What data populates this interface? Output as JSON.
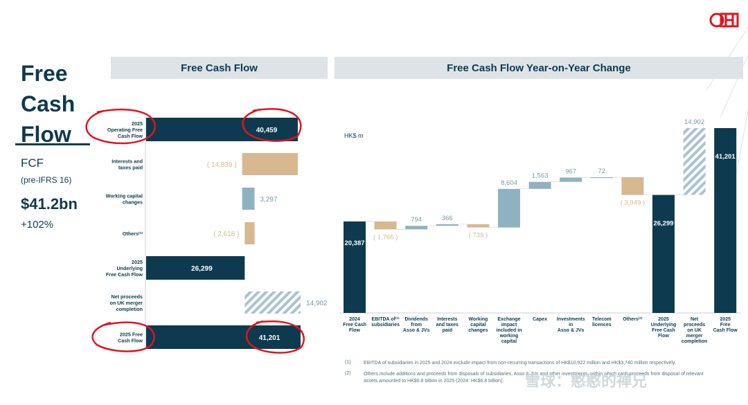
{
  "page": {
    "title": "Free Cash Flow",
    "fcf_label": "FCF",
    "fcf_sub": "(pre-IFRS 16)",
    "fcf_value": "$41.2bn",
    "fcf_change": "+102%"
  },
  "colors": {
    "navy": "#0d3a4f",
    "tan": "#d7b88f",
    "blue_grey": "#8fb2c1",
    "hatch": "#a9c3ce",
    "annotation_red": "#e0141e"
  },
  "footnotes": [
    {
      "num": "(1)",
      "text": "EBITDA of subsidiaries in 2025 and 2024 exclude impact from non-recurring transactions of HK$10,922 million and HK$3,740 million respectively."
    },
    {
      "num": "(2)",
      "text": "Others include additions and proceeds from disposals of subsidiaries, Asso & JVs and other investments, within which cash proceeds from disposal of relevant assets amounted to HK$0.8 billion in 2025 (2024: HK$6.8 billion)."
    }
  ],
  "watermark": "雪球：憨憨的禅兄",
  "chart_data": [
    {
      "type": "bar",
      "orientation": "horizontal",
      "title": "Free Cash Flow",
      "categories": [
        "2025 Operating Free Cash Flow",
        "Interests and taxes paid",
        "Working capital changes",
        "Others",
        "2025 Underlying Free Cash Flow",
        "Net proceeds on UK merger completion",
        "2025 Free Cash Flow"
      ],
      "category_lines": [
        [
          "2025",
          "Operating Free",
          "Cash Flow"
        ],
        [
          "Interests and",
          "taxes paid"
        ],
        [
          "Working capital",
          "changes"
        ],
        [
          "Others⁽²⁾"
        ],
        [
          "2025",
          "Underlying",
          "Free Cash Flow"
        ],
        [
          "Net proceeds",
          "on UK merger",
          "completion"
        ],
        [
          "2025 Free",
          "Cash Flow"
        ]
      ],
      "values": [
        40459,
        -14839,
        3297,
        -2618,
        26299,
        14902,
        41201
      ],
      "labels": [
        "40,459",
        "( 14,839 )",
        "3,297",
        "( 2,618 )",
        "26,299",
        "14,902",
        "41,201"
      ],
      "styles": [
        "total",
        "negative",
        "positive",
        "negative",
        "total",
        "hatched",
        "total"
      ]
    },
    {
      "type": "bar",
      "subtype": "waterfall",
      "title": "Free Cash Flow Year-on-Year Change",
      "ylabel": "HK$ m",
      "categories": [
        "2024 Free Cash Flow",
        "EBITDA of subsidiaries",
        "Dividends from Asso & JVs",
        "Interests and taxes paid",
        "Working capital changes",
        "Exchange impact included in working capital",
        "Capex",
        "Investments in Asso & JVs",
        "Telecom licences",
        "Others",
        "2025 Underlying Free Cash Flow",
        "Net proceeds on UK merger completion",
        "2025 Free Cash Flow"
      ],
      "category_lines": [
        [
          "2024",
          "Free Cash",
          "Flow"
        ],
        [
          "EBITDA of⁽¹⁾",
          "subsidiaries"
        ],
        [
          "Dividends",
          "from",
          "Asso & JVs"
        ],
        [
          "Interests",
          "and taxes",
          "paid"
        ],
        [
          "Working",
          "capital",
          "changes"
        ],
        [
          "Exchange",
          "impact",
          "included in",
          "working",
          "capital"
        ],
        [
          "Capex"
        ],
        [
          "Investments",
          "in",
          "Asso & JVs"
        ],
        [
          "Telecom",
          "licences"
        ],
        [
          "Others⁽²⁾"
        ],
        [
          "2025",
          "Underlying",
          "Free Cash",
          "Flow"
        ],
        [
          "Net",
          "proceeds",
          "on UK",
          "merger",
          "completion"
        ],
        [
          "2025",
          "Free",
          "Cash Flow"
        ]
      ],
      "values": [
        20387,
        -1766,
        794,
        366,
        -739,
        8604,
        1563,
        967,
        72,
        -3949,
        26299,
        14902,
        41201
      ],
      "labels": [
        "20,387",
        "( 1,766 )",
        "794",
        "366",
        "( 739 )",
        "8,604",
        "1,563",
        "967",
        "72",
        "( 3,949 )",
        "26,299",
        "14,902",
        "41,201"
      ],
      "styles": [
        "total",
        "negative",
        "positive",
        "positive",
        "negative",
        "positive",
        "positive",
        "positive",
        "positive",
        "negative",
        "total",
        "hatched",
        "total"
      ]
    }
  ]
}
